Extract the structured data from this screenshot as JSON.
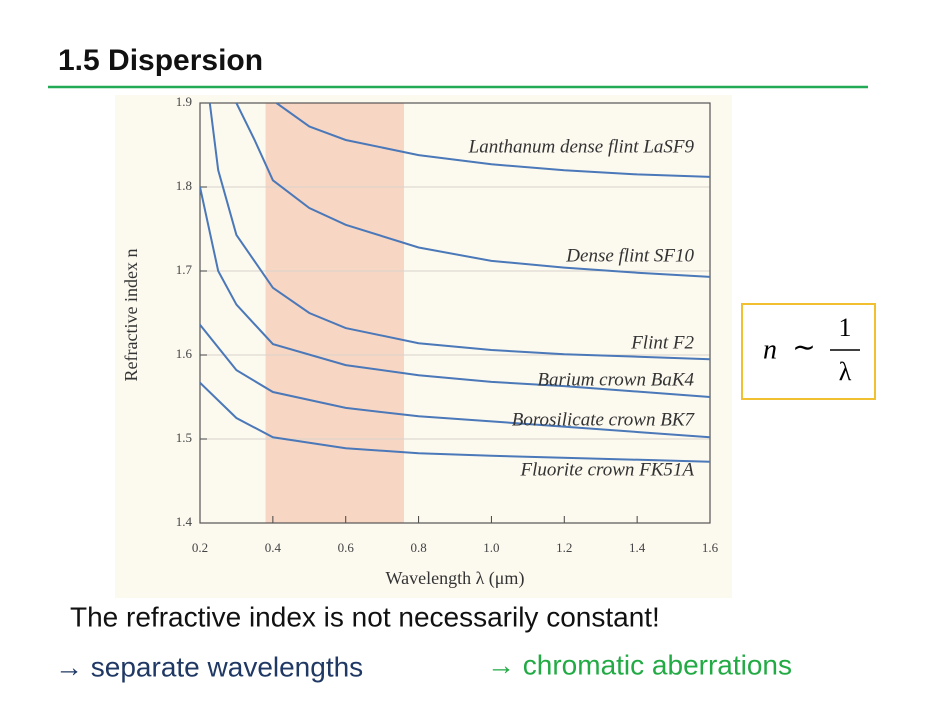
{
  "slide": {
    "title": "1.5 Dispersion",
    "formula": {
      "lhs": "n",
      "relation": "∼",
      "numerator": "1",
      "denominator": "λ"
    },
    "text": [
      "The refractive index is not necessarily constant!",
      "→ separate wavelengths",
      "→ chromatic aberrations"
    ]
  },
  "chart_data": {
    "type": "line",
    "xlabel": "Wavelength λ (μm)",
    "ylabel": "Refractive index n",
    "xlim": [
      0.2,
      1.6
    ],
    "ylim": [
      1.4,
      1.9
    ],
    "xticks": [
      0.2,
      0.4,
      0.6,
      0.8,
      {
        "value": 1,
        "label": "1.0"
      },
      1.2,
      1.4,
      1.6
    ],
    "yticks": [
      1.4,
      1.5,
      1.6,
      1.7,
      1.8,
      1.9
    ],
    "grid": true,
    "highlight_xrange": [
      0.38,
      0.76
    ],
    "highlight_color": "#f8d6c4",
    "series": [
      {
        "name": "Lanthanum dense flint LaSF9",
        "color": "#4a78b8",
        "x": [
          0.41,
          0.5,
          0.6,
          0.8,
          1.0,
          1.2,
          1.4,
          1.6
        ],
        "values": [
          1.9,
          1.872,
          1.856,
          1.838,
          1.827,
          1.82,
          1.815,
          1.812
        ]
      },
      {
        "name": "Dense flint SF10",
        "color": "#4a78b8",
        "x": [
          0.3,
          0.35,
          0.4,
          0.5,
          0.6,
          0.8,
          1.0,
          1.2,
          1.4,
          1.6
        ],
        "values": [
          1.9,
          1.856,
          1.808,
          1.775,
          1.755,
          1.728,
          1.712,
          1.704,
          1.698,
          1.693
        ]
      },
      {
        "name": "Flint F2",
        "color": "#4a78b8",
        "x": [
          0.227,
          0.25,
          0.3,
          0.4,
          0.5,
          0.6,
          0.8,
          1.0,
          1.2,
          1.6
        ],
        "values": [
          1.9,
          1.82,
          1.743,
          1.68,
          1.65,
          1.632,
          1.614,
          1.606,
          1.601,
          1.595
        ]
      },
      {
        "name": "Barium crown BaK4",
        "color": "#4a78b8",
        "x": [
          0.2,
          0.25,
          0.3,
          0.4,
          0.6,
          0.8,
          1.0,
          1.2,
          1.6
        ],
        "values": [
          1.8,
          1.7,
          1.66,
          1.613,
          1.588,
          1.576,
          1.568,
          1.563,
          1.55
        ]
      },
      {
        "name": "Borosilicate crown BK7",
        "color": "#4a78b8",
        "x": [
          0.2,
          0.3,
          0.4,
          0.6,
          0.8,
          1.0,
          1.6
        ],
        "values": [
          1.636,
          1.582,
          1.556,
          1.537,
          1.527,
          1.521,
          1.502
        ]
      },
      {
        "name": "Fluorite crown FK51A",
        "color": "#4a78b8",
        "x": [
          0.2,
          0.3,
          0.4,
          0.6,
          0.8,
          1.0,
          1.6
        ],
        "values": [
          1.567,
          1.525,
          1.502,
          1.489,
          1.483,
          1.48,
          1.473
        ]
      }
    ]
  }
}
